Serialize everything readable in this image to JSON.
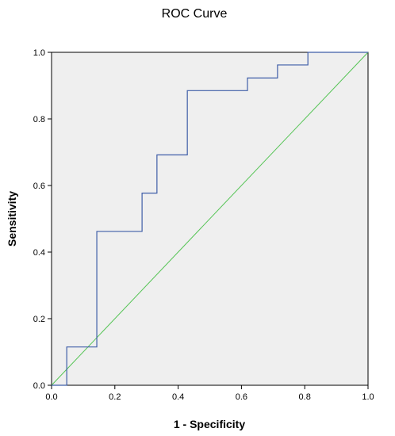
{
  "chart_data": {
    "type": "line",
    "title": "ROC Curve",
    "xlabel": "1 - Specificity",
    "ylabel": "Sensitivity",
    "xlim": [
      0.0,
      1.0
    ],
    "ylim": [
      0.0,
      1.0
    ],
    "x_ticks": [
      "0.0",
      "0.2",
      "0.4",
      "0.6",
      "0.8",
      "1.0"
    ],
    "y_ticks": [
      "0.0",
      "0.2",
      "0.4",
      "0.6",
      "0.8",
      "1.0"
    ],
    "tick_values": [
      0.0,
      0.2,
      0.4,
      0.6,
      0.8,
      1.0
    ],
    "grid": false,
    "series": [
      {
        "kind": "step",
        "color": "#3f5ea8",
        "x": [
          0.0,
          0.048,
          0.048,
          0.143,
          0.143,
          0.286,
          0.286,
          0.333,
          0.333,
          0.429,
          0.429,
          0.619,
          0.619,
          0.714,
          0.714,
          0.81,
          0.81,
          1.0
        ],
        "y": [
          0.0,
          0.0,
          0.115,
          0.115,
          0.462,
          0.462,
          0.577,
          0.577,
          0.692,
          0.692,
          0.885,
          0.885,
          0.923,
          0.923,
          0.962,
          0.962,
          1.0,
          1.0
        ]
      },
      {
        "kind": "reference",
        "color": "#55c455",
        "x": [
          0.0,
          1.0
        ],
        "y": [
          0.0,
          1.0
        ]
      }
    ],
    "plot_background": "#efefef"
  }
}
